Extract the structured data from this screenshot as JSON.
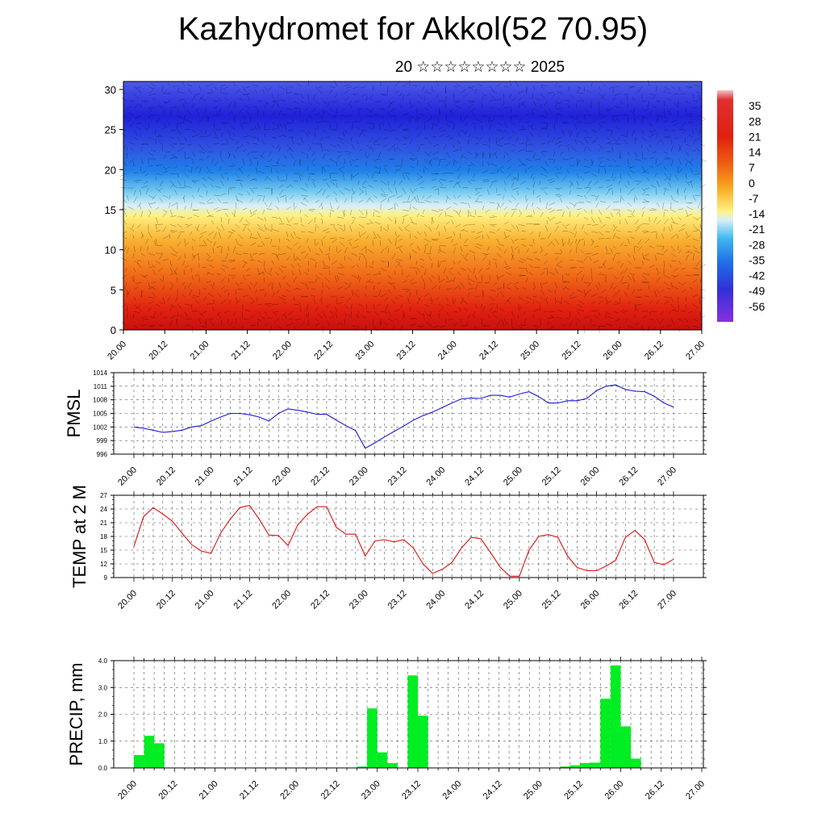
{
  "title": "Kazhydromet for Akkol(52 70.95)",
  "subtitle": "20 ☆☆☆☆☆☆☆☆ 2025",
  "colors": {
    "pmsl": "#1a1ad8",
    "temp": "#e01010",
    "precip": "#00ee22"
  },
  "time_labels": [
    "20.00",
    "20.12",
    "21.00",
    "21.12",
    "22.00",
    "22.12",
    "23.00",
    "23.12",
    "24.00",
    "24.12",
    "25.00",
    "25.12",
    "26.00",
    "26.12",
    "27.00"
  ],
  "chart_data": [
    {
      "type": "heatmap",
      "name": "section",
      "y_ticks": [
        "0",
        "5",
        "10",
        "15",
        "20",
        "25",
        "30"
      ],
      "ylim": [
        0,
        31
      ],
      "colorbar_labels": [
        "35",
        "28",
        "21",
        "14",
        "7",
        "0",
        "-7",
        "-14",
        "-21",
        "-28",
        "-35",
        "-42",
        "-49",
        "-56"
      ],
      "colorbar_range": [
        -63,
        42
      ]
    },
    {
      "type": "line",
      "name": "pmsl",
      "ylabel": "PMSL",
      "ylim": [
        996,
        1014
      ],
      "y_ticks": [
        "996",
        "999",
        "1002",
        "1005",
        "1008",
        "1011",
        "1014"
      ],
      "x": [
        0,
        0.125,
        0.25,
        0.375,
        0.5,
        0.625,
        0.75,
        0.875,
        1.0,
        1.125,
        1.25,
        1.375,
        1.5,
        1.625,
        1.75,
        1.875,
        2.0,
        2.125,
        2.25,
        2.375,
        2.5,
        2.625,
        2.75,
        2.875,
        3.0,
        3.125,
        3.25,
        3.375,
        3.5,
        3.625,
        3.75,
        3.875,
        4.0,
        4.125,
        4.25,
        4.375,
        4.5,
        4.625,
        4.75,
        4.875,
        5.0,
        5.125,
        5.25,
        5.375,
        5.5,
        5.625,
        5.75,
        5.875,
        6.0,
        6.125,
        6.25,
        6.375,
        6.5,
        6.625,
        6.75,
        6.875,
        7.0
      ],
      "y": [
        1002.0,
        1001.7,
        1001.3,
        1000.8,
        1001.0,
        1001.3,
        1002.0,
        1002.3,
        1003.3,
        1004.2,
        1005.0,
        1005.0,
        1004.7,
        1004.2,
        1003.3,
        1005.0,
        1006.0,
        1005.7,
        1005.3,
        1004.8,
        1004.8,
        1003.5,
        1002.3,
        1001.2,
        997.3,
        998.5,
        999.8,
        1001.0,
        1002.2,
        1003.5,
        1004.5,
        1005.3,
        1006.3,
        1007.3,
        1008.2,
        1008.4,
        1008.3,
        1009.0,
        1009.0,
        1008.6,
        1009.3,
        1009.8,
        1008.7,
        1007.3,
        1007.3,
        1007.8,
        1007.8,
        1008.3,
        1010.0,
        1011.0,
        1011.3,
        1010.3,
        1009.9,
        1009.8,
        1008.8,
        1007.3,
        1006.4
      ]
    },
    {
      "type": "line",
      "name": "temp",
      "ylabel": "TEMP at 2 M",
      "ylim": [
        9,
        27
      ],
      "y_ticks": [
        "9",
        "12",
        "15",
        "18",
        "21",
        "24",
        "27"
      ],
      "x": [
        0,
        0.125,
        0.25,
        0.375,
        0.5,
        0.625,
        0.75,
        0.875,
        1.0,
        1.125,
        1.25,
        1.375,
        1.5,
        1.625,
        1.75,
        1.875,
        2.0,
        2.125,
        2.25,
        2.375,
        2.5,
        2.625,
        2.75,
        2.875,
        3.0,
        3.125,
        3.25,
        3.375,
        3.5,
        3.625,
        3.75,
        3.875,
        4.0,
        4.125,
        4.25,
        4.375,
        4.5,
        4.625,
        4.75,
        4.875,
        5.0,
        5.125,
        5.25,
        5.375,
        5.5,
        5.625,
        5.75,
        5.875,
        6.0,
        6.125,
        6.25,
        6.375,
        6.5,
        6.625,
        6.75,
        6.875,
        7.0
      ],
      "y": [
        15.8,
        22.3,
        24.3,
        22.9,
        21.3,
        18.7,
        16.2,
        14.8,
        14.3,
        18.7,
        21.8,
        24.3,
        24.8,
        21.8,
        18.3,
        18.2,
        16.0,
        20.5,
        22.8,
        24.5,
        24.5,
        20.0,
        18.5,
        18.5,
        13.7,
        17.0,
        17.3,
        16.8,
        17.3,
        15.5,
        12.0,
        9.9,
        10.8,
        12.3,
        15.5,
        17.8,
        17.5,
        14.5,
        11.3,
        9.3,
        9.3,
        15.0,
        18.0,
        18.4,
        17.8,
        13.7,
        11.2,
        10.5,
        10.5,
        11.5,
        12.8,
        17.8,
        19.3,
        17.3,
        12.3,
        11.8,
        13.0
      ]
    },
    {
      "type": "bar",
      "name": "precip",
      "ylabel": "PRECIP, mm",
      "ylim": [
        0,
        4
      ],
      "y_ticks": [
        "0.0",
        "1.0",
        "2.0",
        "3.0",
        "4.0"
      ],
      "x": [
        0.125,
        0.25,
        0.375,
        0.5,
        0.625,
        0.75,
        0.875,
        1.0,
        1.125,
        1.25,
        1.375,
        1.5,
        1.625,
        1.75,
        1.875,
        2.0,
        2.125,
        2.25,
        2.375,
        2.5,
        2.625,
        2.75,
        2.875,
        3.0,
        3.125,
        3.25,
        3.375,
        3.5,
        3.625,
        3.75,
        3.875,
        4.0,
        4.125,
        4.25,
        4.375,
        4.5,
        4.625,
        4.75,
        4.875,
        5.0,
        5.125,
        5.25,
        5.375,
        5.5,
        5.625,
        5.75,
        5.875,
        6.0,
        6.125,
        6.25,
        6.375,
        6.5,
        6.625,
        6.75,
        6.875
      ],
      "values": [
        0.48,
        1.2,
        0.92,
        0,
        0,
        0,
        0.02,
        0,
        0,
        0,
        0,
        0,
        0,
        0,
        0,
        0,
        0,
        0,
        0,
        0,
        0,
        0,
        0.05,
        2.22,
        0.58,
        0.18,
        0,
        3.45,
        1.95,
        0,
        0,
        0.02,
        0,
        0,
        0,
        0,
        0,
        0,
        0,
        0,
        0,
        0,
        0.05,
        0.1,
        0.18,
        0.2,
        2.58,
        3.82,
        1.55,
        0.35,
        0,
        0,
        0,
        0,
        0
      ]
    }
  ]
}
